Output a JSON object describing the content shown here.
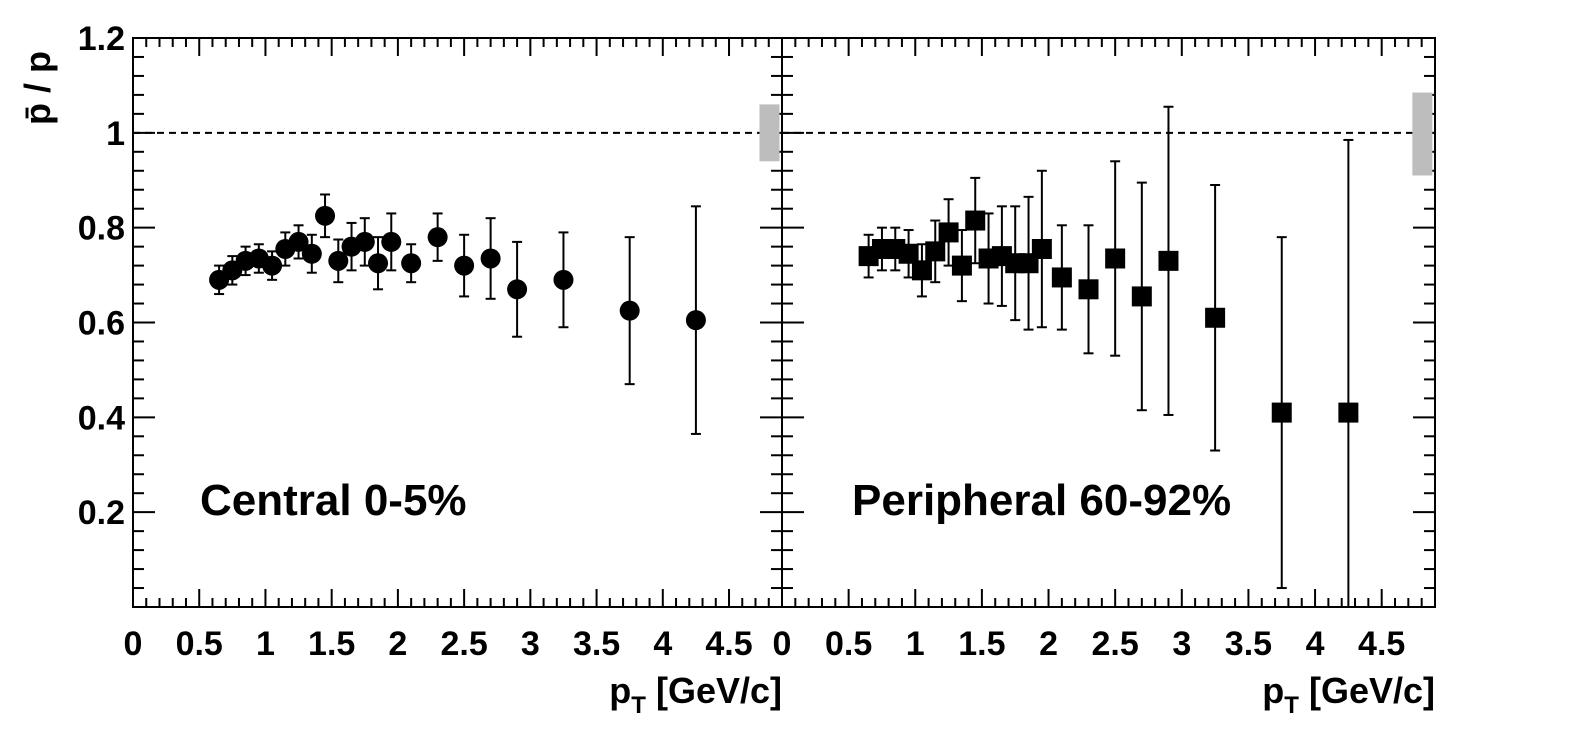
{
  "chart_data": [
    {
      "type": "scatter",
      "panel_label": "Central 0-5%",
      "marker": "circle",
      "ylabel": "p̄ / p",
      "xlabel_main": "p",
      "xlabel_sub": "T",
      "xlabel_rest": " [GeV/c]",
      "xlim": [
        0,
        4.9
      ],
      "ylim": [
        0,
        1.2
      ],
      "x_ticks": [
        "0",
        "0.5",
        "1",
        "1.5",
        "2",
        "2.5",
        "3",
        "3.5",
        "4",
        "4.5"
      ],
      "y_ticks": [
        "0.2",
        "0.4",
        "0.6",
        "0.8",
        "1",
        "1.2"
      ],
      "reference_line": 1,
      "systematic_band": [
        0.94,
        1.06
      ],
      "x": [
        0.65,
        0.75,
        0.85,
        0.95,
        1.05,
        1.15,
        1.25,
        1.35,
        1.45,
        1.55,
        1.65,
        1.75,
        1.85,
        1.95,
        2.1,
        2.3,
        2.5,
        2.7,
        2.9,
        3.25,
        3.75,
        4.25
      ],
      "y": [
        0.69,
        0.71,
        0.73,
        0.735,
        0.72,
        0.755,
        0.77,
        0.745,
        0.825,
        0.73,
        0.76,
        0.77,
        0.725,
        0.77,
        0.725,
        0.78,
        0.72,
        0.735,
        0.67,
        0.69,
        0.625,
        0.605
      ],
      "err": [
        0.03,
        0.03,
        0.03,
        0.03,
        0.03,
        0.035,
        0.035,
        0.04,
        0.045,
        0.045,
        0.05,
        0.05,
        0.055,
        0.06,
        0.04,
        0.05,
        0.065,
        0.085,
        0.1,
        0.1,
        0.155,
        0.24
      ]
    },
    {
      "type": "scatter",
      "panel_label": "Peripheral 60-92%",
      "marker": "square",
      "xlabel_main": "p",
      "xlabel_sub": "T",
      "xlabel_rest": " [GeV/c]",
      "xlim": [
        0,
        4.9
      ],
      "ylim": [
        0,
        1.2
      ],
      "x_ticks": [
        "0",
        "0.5",
        "1",
        "1.5",
        "2",
        "2.5",
        "3",
        "3.5",
        "4",
        "4.5"
      ],
      "reference_line": 1,
      "systematic_band": [
        0.91,
        1.085
      ],
      "x": [
        0.65,
        0.75,
        0.85,
        0.95,
        1.05,
        1.15,
        1.25,
        1.35,
        1.45,
        1.55,
        1.65,
        1.75,
        1.85,
        1.95,
        2.1,
        2.3,
        2.5,
        2.7,
        2.9,
        3.25,
        3.75,
        4.25
      ],
      "y": [
        0.74,
        0.755,
        0.755,
        0.745,
        0.71,
        0.75,
        0.79,
        0.72,
        0.815,
        0.735,
        0.74,
        0.725,
        0.725,
        0.755,
        0.695,
        0.67,
        0.735,
        0.655,
        0.73,
        0.61,
        0.41,
        0.41
      ],
      "err": [
        0.045,
        0.045,
        0.045,
        0.05,
        0.055,
        0.065,
        0.07,
        0.075,
        0.09,
        0.095,
        0.105,
        0.12,
        0.14,
        0.165,
        0.11,
        0.135,
        0.205,
        0.24,
        0.325,
        0.28,
        0.37,
        0.575
      ]
    }
  ]
}
